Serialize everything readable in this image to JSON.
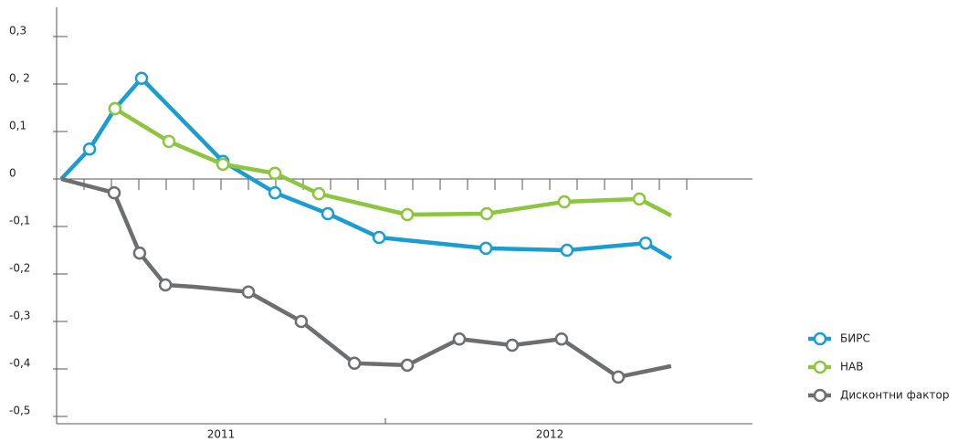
{
  "chart_data": {
    "type": "line",
    "xlim": [
      0,
      23.4
    ],
    "ylim": [
      -0.5,
      0.35
    ],
    "yticks": [
      {
        "value": 0.3,
        "label": "0,3"
      },
      {
        "value": 0.2,
        "label": "0, 2"
      },
      {
        "value": 0.1,
        "label": "0,1"
      },
      0,
      {
        "value": -0.1,
        "label": "-0,1"
      },
      {
        "value": -0.2,
        "label": "-0,2"
      },
      {
        "value": -0.3,
        "label": "-0,3"
      },
      {
        "value": -0.4,
        "label": "-0,4"
      },
      {
        "value": -0.5,
        "label": "-0,5"
      }
    ],
    "xticks": [
      0,
      1,
      2,
      3,
      4,
      5,
      6,
      7,
      8,
      9,
      10,
      11,
      12,
      13,
      14,
      15,
      16,
      17,
      18,
      19,
      20,
      21,
      22,
      23
    ],
    "year_labels": [
      {
        "value": 6,
        "label": "2011"
      },
      {
        "value": 18,
        "label": "2012"
      }
    ],
    "year_divider": 12,
    "series": [
      {
        "name": "БИРС",
        "color": "#1a9dd1",
        "x": [
          0.17,
          1.2,
          2.13,
          3.1,
          6.07,
          7.97,
          9.9,
          11.77,
          15.67,
          18.63,
          21.5,
          22.43
        ],
        "values": [
          0,
          0.063,
          0.148,
          0.212,
          0.037,
          -0.029,
          -0.073,
          -0.123,
          -0.146,
          -0.15,
          -0.135,
          -0.167
        ],
        "markers": [
          false,
          true,
          true,
          true,
          true,
          true,
          true,
          true,
          true,
          true,
          true,
          false
        ]
      },
      {
        "name": "НАВ",
        "color": "#8cc63f",
        "x": [
          2.13,
          4.1,
          6.07,
          7.97,
          9.57,
          12.8,
          15.7,
          18.53,
          21.27,
          22.43
        ],
        "values": [
          0.148,
          0.079,
          0.031,
          0.012,
          -0.031,
          -0.075,
          -0.073,
          -0.048,
          -0.042,
          -0.077
        ],
        "markers": [
          true,
          true,
          true,
          true,
          true,
          true,
          true,
          true,
          true,
          false
        ]
      },
      {
        "name": "Дисконтни фактор",
        "color": "#6d6e70",
        "x": [
          0.17,
          2.1,
          3.03,
          3.97,
          5,
          7,
          8.93,
          10.87,
          12.8,
          14.7,
          16.63,
          18.43,
          20.5,
          22.43
        ],
        "values": [
          0,
          -0.029,
          -0.156,
          -0.223,
          -0.227,
          -0.238,
          -0.3,
          -0.388,
          -0.392,
          -0.337,
          -0.35,
          -0.337,
          -0.417,
          -0.394
        ],
        "markers": [
          false,
          true,
          true,
          true,
          false,
          true,
          true,
          true,
          true,
          true,
          true,
          true,
          true,
          false
        ]
      }
    ]
  }
}
